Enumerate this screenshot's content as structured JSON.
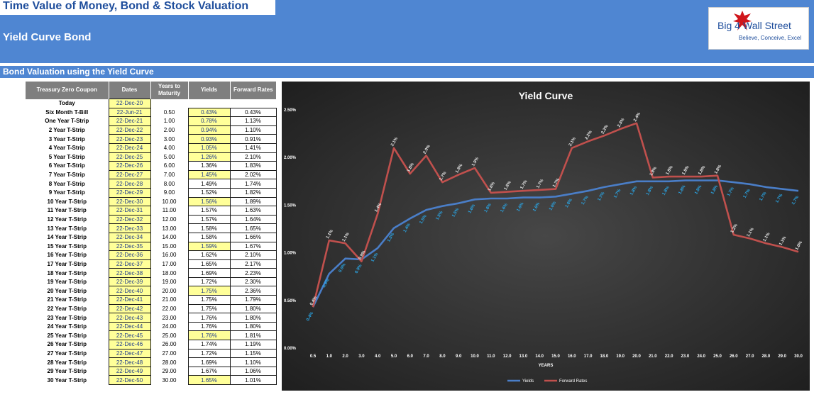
{
  "header": {
    "title": "Time Value of Money, Bond & Stock Valuation",
    "subtitle": "Yield Curve Bond",
    "logo_line1": "Big 4",
    "logo_line2": "Wall Street",
    "logo_tagline": "Believe, Conceive, Excel"
  },
  "section": {
    "title": "Bond Valuation using the Yield Curve"
  },
  "table": {
    "headers": [
      "Treasury Zero Coupon",
      "Dates",
      "Years to Maturity",
      "Yields",
      "Forward Rates"
    ],
    "today": {
      "label": "Today",
      "date": "22-Dec-20"
    },
    "rows": [
      {
        "name": "Six Month T-Bill",
        "date": "22-Jun-21",
        "years": "0.50",
        "yield": "0.43%",
        "fwd": "0.43%",
        "hl": true
      },
      {
        "name": "One Year T-Strip",
        "date": "22-Dec-21",
        "years": "1.00",
        "yield": "0.78%",
        "fwd": "1.13%",
        "hl": true
      },
      {
        "name": "2 Year T-Strip",
        "date": "22-Dec-22",
        "years": "2.00",
        "yield": "0.94%",
        "fwd": "1.10%",
        "hl": true
      },
      {
        "name": "3 Year T-Strip",
        "date": "22-Dec-23",
        "years": "3.00",
        "yield": "0.93%",
        "fwd": "0.91%",
        "hl": true
      },
      {
        "name": "4 Year T-Strip",
        "date": "22-Dec-24",
        "years": "4.00",
        "yield": "1.05%",
        "fwd": "1.41%",
        "hl": true
      },
      {
        "name": "5 Year T-Strip",
        "date": "22-Dec-25",
        "years": "5.00",
        "yield": "1.26%",
        "fwd": "2.10%",
        "hl": true
      },
      {
        "name": "6 Year T-Strip",
        "date": "22-Dec-26",
        "years": "6.00",
        "yield": "1.36%",
        "fwd": "1.83%",
        "hl": false
      },
      {
        "name": "7 Year T-Strip",
        "date": "22-Dec-27",
        "years": "7.00",
        "yield": "1.45%",
        "fwd": "2.02%",
        "hl": true
      },
      {
        "name": "8 Year T-Strip",
        "date": "22-Dec-28",
        "years": "8.00",
        "yield": "1.49%",
        "fwd": "1.74%",
        "hl": false
      },
      {
        "name": "9 Year T-Strip",
        "date": "22-Dec-29",
        "years": "9.00",
        "yield": "1.52%",
        "fwd": "1.82%",
        "hl": false
      },
      {
        "name": "10 Year T-Strip",
        "date": "22-Dec-30",
        "years": "10.00",
        "yield": "1.56%",
        "fwd": "1.89%",
        "hl": true
      },
      {
        "name": "11 Year T-Strip",
        "date": "22-Dec-31",
        "years": "11.00",
        "yield": "1.57%",
        "fwd": "1.63%",
        "hl": false
      },
      {
        "name": "12 Year T-Strip",
        "date": "22-Dec-32",
        "years": "12.00",
        "yield": "1.57%",
        "fwd": "1.64%",
        "hl": false
      },
      {
        "name": "13 Year T-Strip",
        "date": "22-Dec-33",
        "years": "13.00",
        "yield": "1.58%",
        "fwd": "1.65%",
        "hl": false
      },
      {
        "name": "14 Year T-Strip",
        "date": "22-Dec-34",
        "years": "14.00",
        "yield": "1.58%",
        "fwd": "1.66%",
        "hl": false
      },
      {
        "name": "15 Year T-Strip",
        "date": "22-Dec-35",
        "years": "15.00",
        "yield": "1.59%",
        "fwd": "1.67%",
        "hl": true
      },
      {
        "name": "16 Year T-Strip",
        "date": "22-Dec-36",
        "years": "16.00",
        "yield": "1.62%",
        "fwd": "2.10%",
        "hl": false
      },
      {
        "name": "17 Year T-Strip",
        "date": "22-Dec-37",
        "years": "17.00",
        "yield": "1.65%",
        "fwd": "2.17%",
        "hl": false
      },
      {
        "name": "18 Year T-Strip",
        "date": "22-Dec-38",
        "years": "18.00",
        "yield": "1.69%",
        "fwd": "2.23%",
        "hl": false
      },
      {
        "name": "19 Year T-Strip",
        "date": "22-Dec-39",
        "years": "19.00",
        "yield": "1.72%",
        "fwd": "2.30%",
        "hl": false
      },
      {
        "name": "20 Year T-Strip",
        "date": "22-Dec-40",
        "years": "20.00",
        "yield": "1.75%",
        "fwd": "2.36%",
        "hl": true
      },
      {
        "name": "21 Year T-Strip",
        "date": "22-Dec-41",
        "years": "21.00",
        "yield": "1.75%",
        "fwd": "1.79%",
        "hl": false
      },
      {
        "name": "22 Year T-Strip",
        "date": "22-Dec-42",
        "years": "22.00",
        "yield": "1.75%",
        "fwd": "1.80%",
        "hl": false
      },
      {
        "name": "23 Year T-Strip",
        "date": "22-Dec-43",
        "years": "23.00",
        "yield": "1.76%",
        "fwd": "1.80%",
        "hl": false
      },
      {
        "name": "24 Year T-Strip",
        "date": "22-Dec-44",
        "years": "24.00",
        "yield": "1.76%",
        "fwd": "1.80%",
        "hl": false
      },
      {
        "name": "25 Year T-Strip",
        "date": "22-Dec-45",
        "years": "25.00",
        "yield": "1.76%",
        "fwd": "1.81%",
        "hl": true
      },
      {
        "name": "26 Year T-Strip",
        "date": "22-Dec-46",
        "years": "26.00",
        "yield": "1.74%",
        "fwd": "1.19%",
        "hl": false
      },
      {
        "name": "27 Year T-Strip",
        "date": "22-Dec-47",
        "years": "27.00",
        "yield": "1.72%",
        "fwd": "1.15%",
        "hl": false
      },
      {
        "name": "28 Year T-Strip",
        "date": "22-Dec-48",
        "years": "28.00",
        "yield": "1.69%",
        "fwd": "1.10%",
        "hl": false
      },
      {
        "name": "29 Year T-Strip",
        "date": "22-Dec-49",
        "years": "29.00",
        "yield": "1.67%",
        "fwd": "1.06%",
        "hl": false
      },
      {
        "name": "30 Year T-Strip",
        "date": "22-Dec-50",
        "years": "30.00",
        "yield": "1.65%",
        "fwd": "1.01%",
        "hl": true
      }
    ]
  },
  "chart_data": {
    "type": "line",
    "title": "Yield Curve",
    "xlabel": "YEARS",
    "ylabel": "",
    "x": [
      "0.5",
      "1.0",
      "2.0",
      "3.0",
      "4.0",
      "5.0",
      "6.0",
      "7.0",
      "8.0",
      "9.0",
      "10.0",
      "11.0",
      "12.0",
      "13.0",
      "14.0",
      "15.0",
      "16.0",
      "17.0",
      "18.0",
      "19.0",
      "20.0",
      "21.0",
      "22.0",
      "23.0",
      "24.0",
      "25.0",
      "26.0",
      "27.0",
      "28.0",
      "29.0",
      "30.0"
    ],
    "ylim": [
      0,
      2.5
    ],
    "y_ticks": [
      "0.00%",
      "0.50%",
      "1.00%",
      "1.50%",
      "2.00%",
      "2.50%"
    ],
    "grid": false,
    "legend": "bottom",
    "series": [
      {
        "name": "Yields",
        "color": "#4a7ec8",
        "label_color": "#2aa6e6",
        "values": [
          0.43,
          0.78,
          0.94,
          0.93,
          1.05,
          1.26,
          1.36,
          1.45,
          1.49,
          1.52,
          1.56,
          1.57,
          1.57,
          1.58,
          1.58,
          1.59,
          1.62,
          1.65,
          1.69,
          1.72,
          1.75,
          1.75,
          1.75,
          1.76,
          1.76,
          1.76,
          1.74,
          1.72,
          1.69,
          1.67,
          1.65
        ],
        "labels": [
          "0.4%",
          "0.8%",
          "0.9%",
          "0.9%",
          "1.1%",
          "1.3%",
          "1.4%",
          "1.5%",
          "1.5%",
          "1.5%",
          "1.6%",
          "1.6%",
          "1.6%",
          "1.6%",
          "1.6%",
          "1.6%",
          "1.6%",
          "1.7%",
          "1.7%",
          "1.7%",
          "1.8%",
          "1.8%",
          "1.8%",
          "1.8%",
          "1.8%",
          "1.8%",
          "1.7%",
          "1.7%",
          "1.7%",
          "1.7%",
          "1.7%"
        ]
      },
      {
        "name": "Forward Rates",
        "color": "#c0504d",
        "label_color": "#e6e6e6",
        "values": [
          0.43,
          1.13,
          1.1,
          0.91,
          1.41,
          2.1,
          1.83,
          2.02,
          1.74,
          1.82,
          1.89,
          1.63,
          1.64,
          1.65,
          1.66,
          1.67,
          2.1,
          2.17,
          2.23,
          2.3,
          2.36,
          1.79,
          1.8,
          1.8,
          1.8,
          1.81,
          1.19,
          1.15,
          1.1,
          1.06,
          1.01
        ],
        "labels": [
          "0.4%",
          "1.1%",
          "1.1%",
          "0.9%",
          "1.4%",
          "2.1%",
          "1.8%",
          "2.0%",
          "1.7%",
          "1.8%",
          "1.9%",
          "1.6%",
          "1.6%",
          "1.7%",
          "1.7%",
          "1.7%",
          "2.1%",
          "2.2%",
          "2.2%",
          "2.3%",
          "2.4%",
          "1.8%",
          "1.8%",
          "1.8%",
          "1.8%",
          "1.8%",
          "1.2%",
          "1.1%",
          "1.1%",
          "1.1%",
          "1.0%"
        ]
      }
    ]
  }
}
